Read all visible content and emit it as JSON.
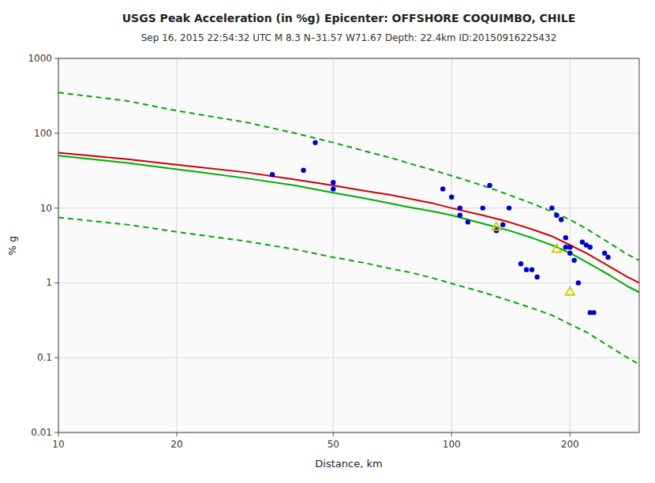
{
  "chart_data": {
    "type": "line",
    "title": "USGS Peak Acceleration (in %g) Epicenter: OFFSHORE COQUIMBO, CHILE",
    "subtitle": "Sep 16, 2015 22:54:32 UTC  M 8.3  N–31.57 W71.67  Depth: 22.4km  ID:20150916225432",
    "x_label": "Distance, km",
    "y_label": "% g",
    "log": true,
    "grid": true,
    "xlim": [
      10,
      300
    ],
    "ylim": [
      0.01,
      1000
    ],
    "xticks": [
      10,
      20,
      50,
      100,
      200
    ],
    "yticks": [
      0.01,
      0.1,
      1,
      10,
      100,
      1000
    ],
    "series": [
      {
        "type": "line",
        "color": "#00aa00",
        "line_style": "dashed",
        "x": [
          10,
          15,
          20,
          30,
          40,
          50,
          60,
          70,
          80,
          90,
          100,
          120,
          140,
          160,
          180,
          200,
          220,
          250,
          280,
          300
        ],
        "values": [
          350,
          270,
          200,
          140,
          100,
          75,
          58,
          47,
          38,
          32,
          27,
          20,
          15,
          11.5,
          9,
          7,
          5.3,
          3.5,
          2.4,
          2.0
        ]
      },
      {
        "type": "line",
        "color": "#00aa00",
        "line_style": "dashed",
        "x": [
          10,
          15,
          20,
          30,
          40,
          50,
          60,
          70,
          80,
          90,
          100,
          120,
          140,
          160,
          180,
          200,
          220,
          250,
          280,
          300
        ],
        "values": [
          7.5,
          6.0,
          4.8,
          3.6,
          2.8,
          2.2,
          1.85,
          1.55,
          1.35,
          1.15,
          0.98,
          0.75,
          0.58,
          0.46,
          0.37,
          0.28,
          0.22,
          0.145,
          0.1,
          0.082
        ]
      },
      {
        "type": "line",
        "color": "#00aa00",
        "line_style": "solid",
        "x": [
          10,
          15,
          20,
          30,
          40,
          50,
          60,
          70,
          80,
          90,
          100,
          120,
          140,
          160,
          180,
          200,
          220,
          250,
          280,
          300
        ],
        "values": [
          50,
          40,
          33,
          25,
          20,
          16,
          13.5,
          11.5,
          10,
          9,
          8,
          6.2,
          5.0,
          4.0,
          3.2,
          2.5,
          1.9,
          1.3,
          0.9,
          0.75
        ]
      },
      {
        "type": "line",
        "color": "#cc0000",
        "line_style": "solid",
        "x": [
          10,
          15,
          20,
          30,
          40,
          50,
          60,
          70,
          80,
          90,
          100,
          120,
          140,
          160,
          180,
          200,
          220,
          250,
          280,
          300
        ],
        "values": [
          55,
          45,
          38,
          30,
          24,
          20,
          17,
          15,
          13,
          11.5,
          10,
          8,
          6.5,
          5.2,
          4.2,
          3.2,
          2.5,
          1.7,
          1.2,
          1.0
        ]
      },
      {
        "type": "scatter",
        "color": "#0000cc",
        "marker": "circle",
        "x": [
          35,
          42,
          45,
          50,
          50,
          95,
          100,
          105,
          105,
          110,
          120,
          125,
          130,
          135,
          140,
          150,
          155,
          160,
          165,
          180,
          185,
          190,
          195,
          195,
          200,
          200,
          205,
          210,
          215,
          220,
          225,
          225,
          230,
          245,
          250
        ],
        "values": [
          28,
          32,
          75,
          22,
          18,
          18,
          14,
          10,
          8,
          6.5,
          10,
          20,
          5,
          6,
          10,
          1.8,
          1.5,
          1.5,
          1.2,
          10,
          8,
          7,
          4,
          3,
          3,
          2.5,
          2,
          1,
          3.5,
          3.2,
          3,
          0.4,
          0.4,
          2.5,
          2.2
        ]
      },
      {
        "type": "scatter",
        "color": "#cccc00",
        "marker": "triangle",
        "x": [
          130,
          185,
          200
        ],
        "values": [
          5.5,
          2.8,
          0.75
        ]
      }
    ]
  }
}
